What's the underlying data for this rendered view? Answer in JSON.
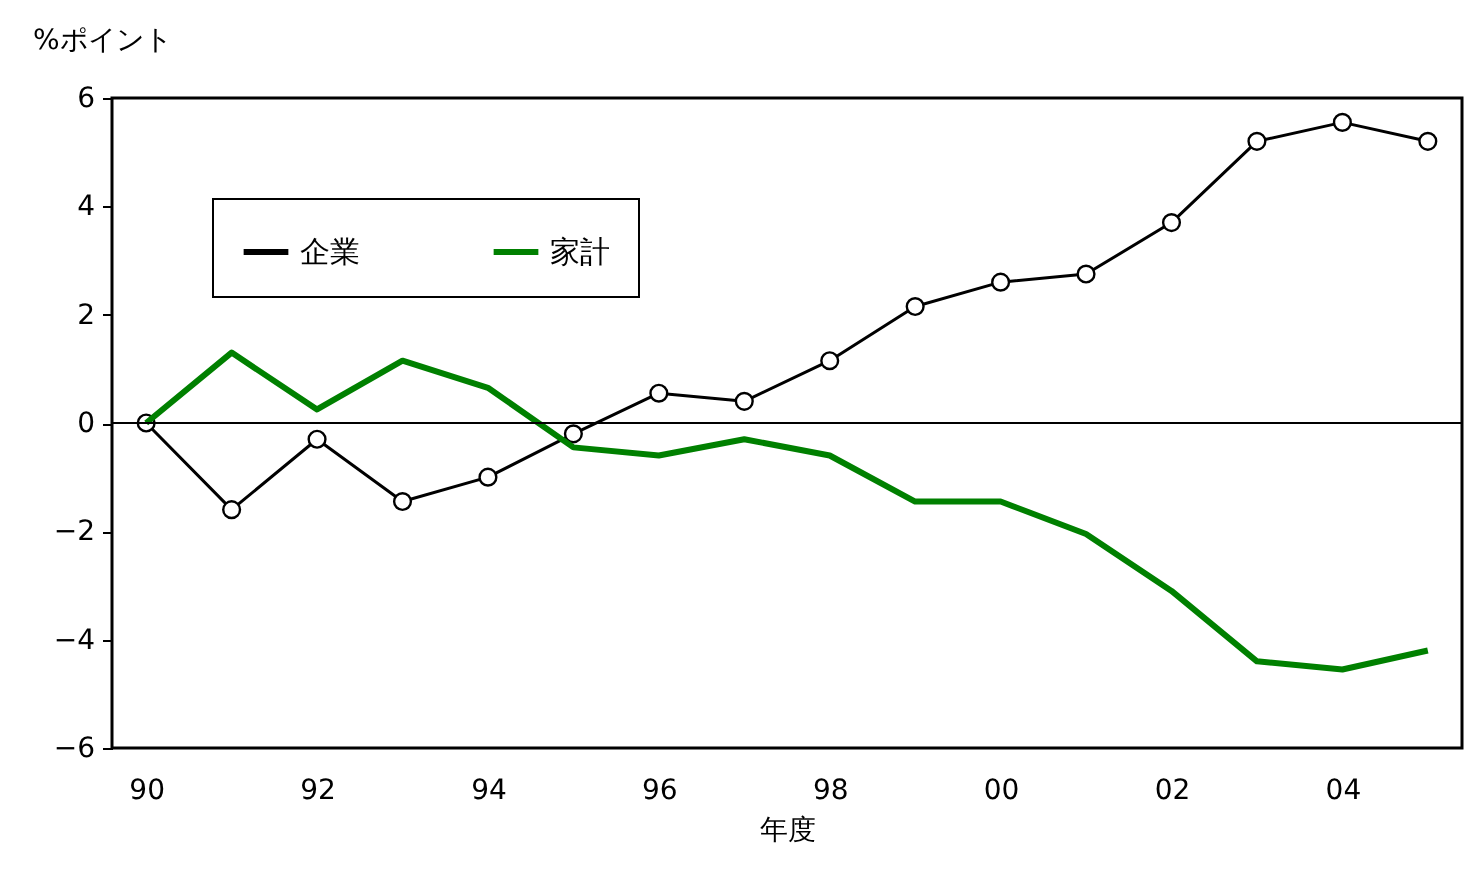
{
  "chart_data": {
    "type": "line",
    "ylabel": "%ポイント",
    "xlabel": "年度",
    "categories": [
      "90",
      null,
      "92",
      null,
      "94",
      null,
      "96",
      null,
      "98",
      null,
      "00",
      null,
      "02",
      null,
      "04",
      null
    ],
    "series": [
      {
        "name": "企業",
        "color": "#000000",
        "marker": "circle",
        "values": [
          0,
          -1.6,
          -0.3,
          -1.45,
          -1.0,
          -0.2,
          0.55,
          0.4,
          1.15,
          2.15,
          2.6,
          2.75,
          3.7,
          5.2,
          5.55,
          5.2
        ]
      },
      {
        "name": "家計",
        "color": "#008000",
        "marker": "none",
        "values": [
          0,
          1.3,
          0.25,
          1.15,
          0.65,
          -0.45,
          -0.6,
          -0.3,
          -0.6,
          -1.45,
          -1.45,
          -2.05,
          -3.1,
          -4.4,
          -4.55,
          -4.2
        ]
      }
    ],
    "ylim": [
      -6,
      6
    ],
    "yticks": [
      -6,
      -4,
      -2,
      0,
      2,
      4,
      6
    ],
    "grid": false,
    "legend": "top left",
    "ref_lines": [
      {
        "axis": "y",
        "value": 0
      }
    ]
  }
}
